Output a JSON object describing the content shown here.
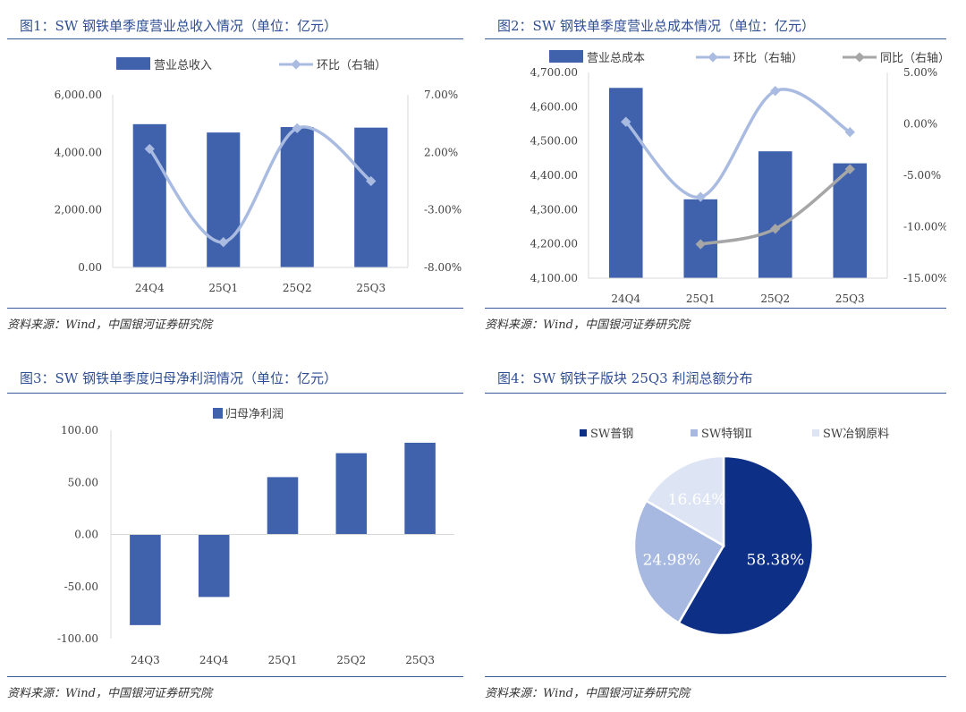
{
  "source_note": "资料来源：Wind，中国银河证券研究院",
  "chart_data": [
    {
      "id": "fig1",
      "title": "图1：SW 钢铁单季度营业总收入情况（单位：亿元）",
      "type": "bar",
      "categories": [
        "24Q4",
        "25Q1",
        "25Q2",
        "25Q3"
      ],
      "series": [
        {
          "name": "营业总收入",
          "type": "bar",
          "axis": "left",
          "color": "#4062ad",
          "values": [
            4980,
            4690,
            4880,
            4860
          ]
        },
        {
          "name": "环比（右轴）",
          "type": "line",
          "axis": "right",
          "color": "#a9bbe0",
          "values": [
            2.3,
            -5.8,
            4.1,
            -0.5
          ]
        }
      ],
      "left_axis": {
        "min": 0,
        "max": 6000,
        "ticks": [
          0,
          2000,
          4000,
          6000
        ],
        "tick_labels": [
          "0.00",
          "2,000.00",
          "4,000.00",
          "6,000.00"
        ]
      },
      "right_axis": {
        "min": -8,
        "max": 7,
        "ticks": [
          -8,
          -3,
          2,
          7
        ],
        "tick_labels": [
          "-8.00%",
          "-3.00%",
          "2.00%",
          "7.00%"
        ]
      },
      "legend_position": "top"
    },
    {
      "id": "fig2",
      "title": "图2：SW 钢铁单季度营业总成本情况（单位：亿元）",
      "type": "bar",
      "categories": [
        "24Q4",
        "25Q1",
        "25Q2",
        "25Q3"
      ],
      "series": [
        {
          "name": "营业总成本",
          "type": "bar",
          "axis": "left",
          "color": "#4062ad",
          "values": [
            4655,
            4330,
            4470,
            4435
          ]
        },
        {
          "name": "环比（右轴）",
          "type": "line",
          "axis": "right",
          "color": "#a9bbe0",
          "values": [
            0.2,
            -7.1,
            3.2,
            -0.8
          ]
        },
        {
          "name": "同比（右轴）",
          "type": "line",
          "axis": "right",
          "color": "#a6a6a6",
          "values": [
            null,
            -11.7,
            -10.2,
            -4.4
          ]
        }
      ],
      "left_axis": {
        "min": 4100,
        "max": 4700,
        "ticks": [
          4100,
          4200,
          4300,
          4400,
          4500,
          4600,
          4700
        ],
        "tick_labels": [
          "4,100.00",
          "4,200.00",
          "4,300.00",
          "4,400.00",
          "4,500.00",
          "4,600.00",
          "4,700.00"
        ]
      },
      "right_axis": {
        "min": -15,
        "max": 5,
        "ticks": [
          -15,
          -10,
          -5,
          0,
          5
        ],
        "tick_labels": [
          "-15.00%",
          "-10.00%",
          "-5.00%",
          "0.00%",
          "5.00%"
        ]
      },
      "legend_position": "top"
    },
    {
      "id": "fig3",
      "title": "图3：SW 钢铁单季度归母净利润情况（单位：亿元）",
      "type": "bar",
      "categories": [
        "24Q3",
        "24Q4",
        "25Q1",
        "25Q2",
        "25Q3"
      ],
      "series": [
        {
          "name": "归母净利润",
          "type": "bar",
          "axis": "left",
          "color": "#4062ad",
          "values": [
            -87,
            -60,
            55,
            78,
            88
          ]
        }
      ],
      "left_axis": {
        "min": -100,
        "max": 100,
        "ticks": [
          -100,
          -50,
          0,
          50,
          100
        ],
        "tick_labels": [
          "-100.00",
          "-50.00",
          "0.00",
          "50.00",
          "100.00"
        ]
      },
      "legend_position": "top"
    },
    {
      "id": "fig4",
      "title": "图4：SW 钢铁子版块 25Q3 利润总额分布",
      "type": "pie",
      "slices": [
        {
          "name": "SW普钢",
          "value": 58.38,
          "label": "58.38%",
          "color": "#0e2f86"
        },
        {
          "name": "SW特钢Ⅱ",
          "value": 24.98,
          "label": "24.98%",
          "color": "#a8b9e1"
        },
        {
          "name": "SW冶钢原料",
          "value": 16.64,
          "label": "16.64%",
          "color": "#dde4f3"
        }
      ],
      "legend_position": "top"
    }
  ]
}
